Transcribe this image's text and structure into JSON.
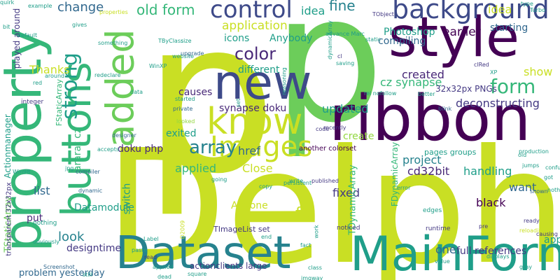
{
  "colors": {
    "background": "#ffffff",
    "lime": "#c9df24",
    "yellow_green": "#a8db34",
    "green": "#6ccd5a",
    "light_green": "#92d741",
    "sea_green": "#35b779",
    "teal": "#1f9e89",
    "teal_blue": "#26828e",
    "steel_blue": "#31688e",
    "slate_blue": "#3e4a89",
    "indigo": "#443983",
    "deep_purple": "#482878",
    "dark_purple": "#440154"
  },
  "words": [
    {
      "text": "p",
      "color": "lime"
    },
    {
      "text": "p",
      "color": "green"
    },
    {
      "text": "Delphi",
      "color": "lime"
    },
    {
      "text": "ribbon",
      "color": "dark_purple"
    },
    {
      "text": "style",
      "color": "dark_purple"
    },
    {
      "text": "property",
      "color": "sea_green"
    },
    {
      "text": "new",
      "color": "slate_blue"
    },
    {
      "text": "buttons",
      "color": "sea_green"
    },
    {
      "text": "added",
      "color": "green"
    },
    {
      "text": "know",
      "color": "lime"
    },
    {
      "text": "Dataset",
      "color": "teal_blue"
    },
    {
      "text": "MainForm",
      "color": "teal"
    },
    {
      "text": "background",
      "color": "slate_blue"
    },
    {
      "text": "control",
      "color": "slate_blue"
    },
    {
      "text": "Images",
      "color": "lime"
    },
    {
      "text": "color",
      "color": "deep_purple"
    },
    {
      "text": "array",
      "color": "teal_blue"
    },
    {
      "text": "form",
      "color": "sea_green"
    },
    {
      "text": "strong",
      "color": "teal"
    },
    {
      "text": "old form",
      "color": "sea_green"
    },
    {
      "text": "application",
      "color": "lime"
    },
    {
      "text": "updated",
      "color": "teal"
    },
    {
      "text": "fine",
      "color": "teal_blue"
    },
    {
      "text": "change",
      "color": "steel_blue"
    },
    {
      "text": "fix",
      "color": "lime"
    },
    {
      "text": "project",
      "color": "teal_blue"
    },
    {
      "text": "applied",
      "color": "sea_green"
    },
    {
      "text": "Close",
      "color": "lime"
    },
    {
      "text": "icons",
      "color": "teal"
    },
    {
      "text": "Anybody",
      "color": "teal"
    },
    {
      "text": "Photoshop",
      "color": "teal"
    },
    {
      "text": "compiling",
      "color": "steel_blue"
    },
    {
      "text": "earlier",
      "color": "dark_purple"
    },
    {
      "text": "starting",
      "color": "steel_blue"
    },
    {
      "text": "created",
      "color": "deep_purple"
    },
    {
      "text": "cz synapse",
      "color": "sea_green"
    },
    {
      "text": "synapse doku",
      "color": "deep_purple"
    },
    {
      "text": "doku php",
      "color": "deep_purple"
    },
    {
      "text": "different",
      "color": "teal"
    },
    {
      "text": "causes",
      "color": "deep_purple"
    },
    {
      "text": "Thanks",
      "color": "lime"
    },
    {
      "text": "idea",
      "color": "teal"
    },
    {
      "text": "idea",
      "color": "lime"
    },
    {
      "text": "show",
      "color": "lime"
    },
    {
      "text": "deconstructing",
      "color": "indigo"
    },
    {
      "text": "32x32px PNGs",
      "color": "indigo"
    },
    {
      "text": "handling",
      "color": "teal"
    },
    {
      "text": "cd32bit",
      "color": "deep_purple"
    },
    {
      "text": "create",
      "color": "light_green"
    },
    {
      "text": "want",
      "color": "steel_blue"
    },
    {
      "text": "black",
      "color": "dark_purple"
    },
    {
      "text": "fixed",
      "color": "indigo"
    },
    {
      "text": "Anyone",
      "color": "lime"
    },
    {
      "text": "list",
      "color": "steel_blue"
    },
    {
      "text": "put",
      "color": "deep_purple"
    },
    {
      "text": "Datamodule",
      "color": "teal"
    },
    {
      "text": "look",
      "color": "teal_blue"
    },
    {
      "text": "designtime",
      "color": "indigo"
    },
    {
      "text": "href",
      "color": "steel_blue"
    },
    {
      "text": "switch",
      "color": "teal"
    },
    {
      "text": "exited",
      "color": "teal"
    },
    {
      "text": "ararat cz",
      "color": "sea_green"
    },
    {
      "text": "one",
      "color": "steel_blue"
    },
    {
      "text": "full references",
      "color": "indigo"
    },
    {
      "text": "app",
      "color": "teal"
    },
    {
      "text": "problem yesterday",
      "color": "steel_blue"
    },
    {
      "text": "pages groups",
      "color": "teal"
    },
    {
      "text": "FStaticArray",
      "color": "sea_green"
    },
    {
      "text": "FDynamicArray",
      "color": "sea_green"
    },
    {
      "text": "TDynamicArray",
      "color": "sea_green"
    },
    {
      "text": "TStaticArray",
      "color": "green"
    },
    {
      "text": "Actionmanager",
      "color": "teal"
    },
    {
      "text": "played around",
      "color": "indigo"
    },
    {
      "text": "transparent 32x32px",
      "color": "indigo"
    },
    {
      "text": "actionclients large",
      "color": "indigo"
    },
    {
      "text": "TImageList set",
      "color": "indigo"
    },
    {
      "text": "another colorset",
      "color": "dark_purple"
    },
    {
      "text": "properties",
      "color": "lime"
    },
    {
      "text": "something",
      "color": "teal"
    },
    {
      "text": "website",
      "color": "teal"
    },
    {
      "text": "upgrade",
      "color": "steel_blue"
    },
    {
      "text": "WinXP",
      "color": "teal"
    },
    {
      "text": "started",
      "color": "teal"
    },
    {
      "text": "private",
      "color": "steel_blue"
    },
    {
      "text": "looked",
      "color": "light_green"
    },
    {
      "text": "designer",
      "color": "steel_blue"
    },
    {
      "text": "integer",
      "color": "indigo"
    },
    {
      "text": "nothing",
      "color": "teal"
    },
    {
      "text": "obviously",
      "color": "teal"
    },
    {
      "text": "dynamic",
      "color": "steel_blue"
    },
    {
      "text": "compiler",
      "color": "steel_blue"
    },
    {
      "text": "paste",
      "color": "teal"
    },
    {
      "text": "read",
      "color": "indigo"
    },
    {
      "text": "dead",
      "color": "teal"
    },
    {
      "text": "applied",
      "color": "teal"
    },
    {
      "text": "Screenshot",
      "color": "steel_blue"
    },
    {
      "text": "square",
      "color": "teal"
    },
    {
      "text": "code",
      "color": "indigo"
    },
    {
      "text": "recently",
      "color": "indigo"
    },
    {
      "text": "published",
      "color": "indigo"
    },
    {
      "text": "write",
      "color": "teal"
    },
    {
      "text": "persistent",
      "color": "teal"
    },
    {
      "text": "copy",
      "color": "teal"
    },
    {
      "text": "edges",
      "color": "teal"
    },
    {
      "text": "runtime",
      "color": "indigo"
    },
    {
      "text": "noticed",
      "color": "indigo"
    },
    {
      "text": "pre",
      "color": "indigo"
    },
    {
      "text": "value",
      "color": "teal"
    },
    {
      "text": "displays",
      "color": "teal"
    },
    {
      "text": "gray",
      "color": "teal"
    },
    {
      "text": "causing",
      "color": "indigo"
    },
    {
      "text": "ready",
      "color": "indigo"
    },
    {
      "text": "reloading",
      "color": "lime"
    },
    {
      "text": "old",
      "color": "teal"
    },
    {
      "text": "jumps",
      "color": "teal"
    },
    {
      "text": "production",
      "color": "teal"
    },
    {
      "text": "confused",
      "color": "teal"
    },
    {
      "text": "got",
      "color": "teal"
    },
    {
      "text": "shown",
      "color": "steel_blue"
    },
    {
      "text": "nothing",
      "color": "teal"
    },
    {
      "text": "cl",
      "color": "indigo"
    },
    {
      "text": "saving",
      "color": "teal"
    },
    {
      "text": "static",
      "color": "teal"
    },
    {
      "text": "rel nofollow",
      "color": "teal"
    },
    {
      "text": "advance Marc",
      "color": "teal"
    },
    {
      "text": "TObject",
      "color": "indigo"
    },
    {
      "text": "type",
      "color": "teal"
    },
    {
      "text": "Turbo",
      "color": "teal"
    },
    {
      "text": "example",
      "color": "teal"
    },
    {
      "text": "bit",
      "color": "teal"
    },
    {
      "text": "XP",
      "color": "teal"
    },
    {
      "text": "clRed",
      "color": "indigo"
    },
    {
      "text": "better",
      "color": "teal"
    },
    {
      "text": "blink",
      "color": "steel_blue"
    },
    {
      "text": "jpg",
      "color": "teal"
    },
    {
      "text": "Win98",
      "color": "teal"
    },
    {
      "text": "dynamicArray",
      "color": "teal"
    },
    {
      "text": "reasoning",
      "color": "teal"
    },
    {
      "text": "Label",
      "color": "teal"
    },
    {
      "text": "D2009",
      "color": "lime"
    },
    {
      "text": "fact",
      "color": "teal"
    },
    {
      "text": "work",
      "color": "teal"
    },
    {
      "text": "set",
      "color": "teal"
    },
    {
      "text": "default",
      "color": "teal"
    },
    {
      "text": "around",
      "color": "teal"
    },
    {
      "text": "red",
      "color": "teal"
    },
    {
      "text": "gives",
      "color": "teal"
    },
    {
      "text": "TByClass",
      "color": "teal"
    },
    {
      "text": "size",
      "color": "teal"
    },
    {
      "text": "redeclare",
      "color": "teal"
    },
    {
      "text": "data",
      "color": "teal"
    },
    {
      "text": "accepts",
      "color": "teal"
    },
    {
      "text": "going",
      "color": "teal"
    },
    {
      "text": "end",
      "color": "teal"
    },
    {
      "text": "class",
      "color": "teal"
    },
    {
      "text": "imgway",
      "color": "teal"
    },
    {
      "text": "still",
      "color": "teal"
    },
    {
      "text": "error",
      "color": "teal"
    },
    {
      "text": "quirk",
      "color": "teal"
    }
  ]
}
